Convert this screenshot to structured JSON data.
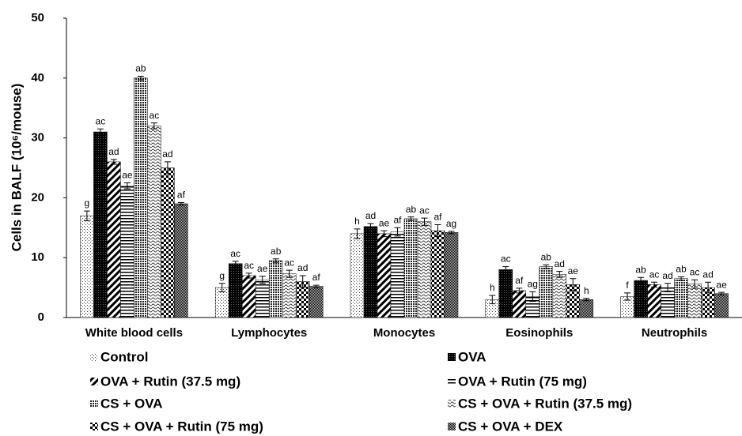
{
  "chart_data": {
    "type": "bar",
    "y_label": "Cells in BALF (10⁶/mouse)",
    "categories": [
      "White blood  cells",
      "Lymphocytes",
      "Monocytes",
      "Eosinophils",
      "Neutrophils"
    ],
    "ylim": [
      0,
      50
    ],
    "yticks": [
      0,
      10,
      20,
      30,
      40,
      50
    ],
    "series": [
      {
        "name": "Control",
        "color": "#000000",
        "pattern": "sparse-dots",
        "values": [
          17,
          5,
          14,
          3,
          3.5
        ],
        "errors": [
          0.8,
          0.7,
          0.8,
          0.7,
          0.6
        ],
        "letters": [
          "g",
          "g",
          "h",
          "h",
          "f"
        ]
      },
      {
        "name": "OVA",
        "color": "#000000",
        "pattern": "dense-check",
        "values": [
          31,
          9,
          15.2,
          8,
          6.2
        ],
        "errors": [
          0.5,
          0.4,
          0.5,
          0.5,
          0.5
        ],
        "letters": [
          "ac",
          "ac",
          "ad",
          "ac",
          "ab"
        ]
      },
      {
        "name": "OVA + Rutin (37.5 mg)",
        "color": "#000000",
        "pattern": "diagonal",
        "values": [
          26,
          7,
          14,
          4.5,
          5.5
        ],
        "errors": [
          0.4,
          0.4,
          0.5,
          0.4,
          0.4
        ],
        "letters": [
          "ad",
          "ac",
          "ae",
          "af",
          "ac"
        ]
      },
      {
        "name": "OVA + Rutin (75 mg)",
        "color": "#000000",
        "pattern": "horizontal",
        "values": [
          22,
          6.3,
          14.3,
          3.5,
          5
        ],
        "errors": [
          0.5,
          0.6,
          0.7,
          0.8,
          0.7
        ],
        "letters": [
          "ae",
          "ae",
          "af",
          "ag",
          "ad"
        ]
      },
      {
        "name": "CS + OVA",
        "color": "#000000",
        "pattern": "dense-dots",
        "values": [
          40,
          9.5,
          16.5,
          8.5,
          6.5
        ],
        "errors": [
          0.3,
          0.3,
          0.3,
          0.3,
          0.3
        ],
        "letters": [
          "ab",
          "ab",
          "ab",
          "ab",
          "ab"
        ]
      },
      {
        "name": "CS + OVA + Rutin (37.5 mg)",
        "color": "#000000",
        "pattern": "wavy",
        "values": [
          32,
          7.3,
          16,
          7.2,
          5.6
        ],
        "errors": [
          0.5,
          0.6,
          0.6,
          0.5,
          0.7
        ],
        "letters": [
          "ac",
          "ac",
          "ac",
          "ad",
          "ac"
        ]
      },
      {
        "name": "CS + OVA + Rutin (75 mg)",
        "color": "#000000",
        "pattern": "big-check",
        "values": [
          25,
          6,
          14.5,
          5.5,
          5
        ],
        "errors": [
          1.0,
          1.0,
          1.0,
          1.0,
          0.9
        ],
        "letters": [
          "ad",
          "ad",
          "af",
          "ae",
          "ad"
        ]
      },
      {
        "name": "CS + OVA + DEX",
        "color": "#000000",
        "pattern": "gray-check",
        "values": [
          19,
          5.2,
          14.2,
          3,
          4
        ],
        "errors": [
          0.2,
          0.2,
          0.2,
          0.2,
          0.2
        ],
        "letters": [
          "af",
          "af",
          "ag",
          "h",
          "ae"
        ]
      }
    ]
  }
}
